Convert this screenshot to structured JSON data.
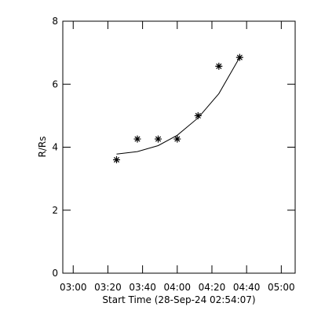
{
  "chart_data": {
    "type": "scatter",
    "xlabel": "Start Time (28-Sep-24 02:54:07)",
    "ylabel": "R/Rs",
    "x": [
      "03:25",
      "03:37",
      "03:49",
      "04:00",
      "04:12",
      "04:24",
      "04:36"
    ],
    "values": [
      3.6,
      4.26,
      4.26,
      4.26,
      5.0,
      6.57,
      6.85
    ],
    "fit": {
      "x": [
        "03:25",
        "03:37",
        "03:49",
        "04:00",
        "04:12",
        "04:24",
        "04:36"
      ],
      "values": [
        3.78,
        3.86,
        4.05,
        4.38,
        4.93,
        5.7,
        6.85
      ]
    },
    "color": "#000000",
    "xlim": [
      "02:54",
      "05:08"
    ],
    "xticks": [
      "03:00",
      "03:20",
      "03:40",
      "04:00",
      "04:20",
      "04:40",
      "05:00"
    ],
    "ylim": [
      0,
      8
    ],
    "yticks": [
      0,
      2,
      4,
      6,
      8
    ]
  }
}
